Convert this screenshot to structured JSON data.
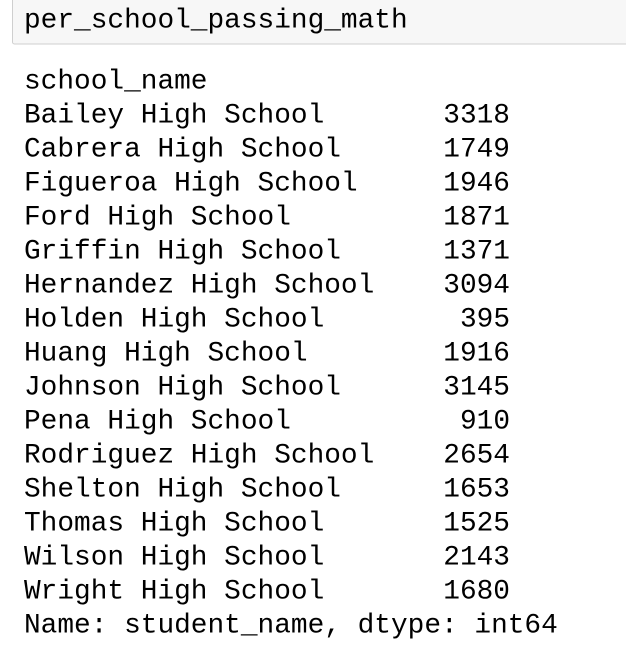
{
  "input": {
    "code": "per_school_passing_math"
  },
  "output": {
    "index_name": "school_name",
    "rows": [
      [
        "Bailey High School",
        3318
      ],
      [
        "Cabrera High School",
        1749
      ],
      [
        "Figueroa High School",
        1946
      ],
      [
        "Ford High School",
        1871
      ],
      [
        "Griffin High School",
        1371
      ],
      [
        "Hernandez High School",
        3094
      ],
      [
        "Holden High School",
        395
      ],
      [
        "Huang High School",
        1916
      ],
      [
        "Johnson High School",
        3145
      ],
      [
        "Pena High School",
        910
      ],
      [
        "Rodriguez High School",
        2654
      ],
      [
        "Shelton High School",
        1653
      ],
      [
        "Thomas High School",
        1525
      ],
      [
        "Wilson High School",
        2143
      ],
      [
        "Wright High School",
        1680
      ]
    ],
    "footer": "Name: student_name, dtype: int64"
  }
}
